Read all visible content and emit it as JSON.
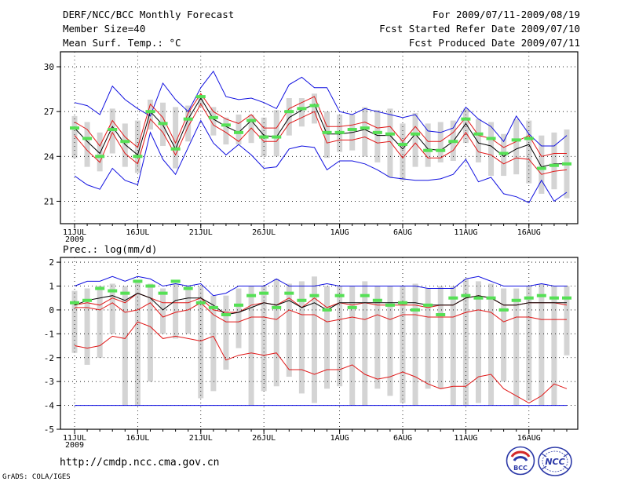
{
  "header": {
    "title": "DERF/NCC/BCC Monthly Forecast",
    "member_size": "Member Size=40",
    "variable": "Mean Surf. Temp.: °C",
    "period": "For 2009/07/11-2009/08/19",
    "started": "Fcst Started Refer Date 2009/07/10",
    "produced": "Fcst Produced Date 2009/07/11"
  },
  "footer": {
    "url": "http://cmdp.ncc.cma.gov.cn",
    "grads": "GrADS: COLA/IGES",
    "logo_bcc_text": "BCC",
    "logo_ncc_text": "NCC"
  },
  "colors": {
    "envelope": "#1010e0",
    "inner": "#e01818",
    "mean": "#000000",
    "green": "#55e055",
    "box": "#d4d4d4"
  },
  "chart_data": [
    {
      "type": "line",
      "id": "temperature",
      "title": "Mean Surf. Temp.: °C",
      "xlabel": "",
      "ylabel": "",
      "x_tick_labels": [
        "11JUL",
        "16JUL",
        "21JUL",
        "26JUL",
        "1AUG",
        "6AUG",
        "11AUG",
        "16AUG"
      ],
      "x_tick_days": [
        1,
        6,
        11,
        16,
        22,
        27,
        32,
        37
      ],
      "x_sublabel": "2009",
      "ylim": [
        19.5,
        31
      ],
      "yticks": [
        21,
        24,
        27,
        30
      ],
      "days": 40,
      "series": [
        {
          "name": "max",
          "color": "blue",
          "values": [
            27.6,
            27.4,
            26.8,
            28.7,
            27.8,
            27.2,
            26.7,
            28.9,
            27.8,
            27.0,
            28.6,
            29.7,
            28.0,
            27.8,
            27.9,
            27.6,
            27.2,
            28.8,
            29.3,
            28.6,
            28.6,
            27.0,
            26.8,
            27.2,
            27.0,
            26.8,
            26.6,
            26.8,
            25.7,
            25.6,
            25.9,
            27.3,
            26.5,
            26.0,
            25.0,
            26.7,
            25.5,
            24.7,
            24.7,
            25.4
          ]
        },
        {
          "name": "upper",
          "color": "red",
          "values": [
            26.3,
            25.8,
            24.7,
            26.4,
            25.3,
            24.6,
            27.5,
            26.6,
            24.9,
            26.9,
            28.2,
            27.0,
            26.5,
            26.2,
            26.8,
            25.9,
            25.9,
            27.2,
            27.6,
            28.0,
            26.0,
            26.0,
            26.1,
            26.3,
            25.9,
            26.0,
            25.0,
            26.0,
            25.0,
            25.0,
            25.6,
            26.6,
            25.4,
            25.2,
            24.6,
            25.0,
            25.4,
            24.0,
            24.2,
            24.2
          ]
        },
        {
          "name": "mean",
          "color": "black",
          "values": [
            25.9,
            25.0,
            24.2,
            26.0,
            24.8,
            24.1,
            27.0,
            26.1,
            24.5,
            26.5,
            27.9,
            26.5,
            26.0,
            25.6,
            26.4,
            25.4,
            25.3,
            26.6,
            27.1,
            27.5,
            25.5,
            25.5,
            25.6,
            25.8,
            25.4,
            25.4,
            24.5,
            25.5,
            24.5,
            24.4,
            25.0,
            26.2,
            24.9,
            24.7,
            24.0,
            24.5,
            24.8,
            23.3,
            23.5,
            23.5
          ]
        },
        {
          "name": "lower",
          "color": "red",
          "values": [
            25.4,
            24.4,
            23.6,
            25.6,
            24.2,
            23.5,
            26.5,
            25.6,
            24.1,
            26.0,
            27.5,
            26.1,
            25.6,
            25.0,
            25.9,
            25.0,
            25.0,
            26.2,
            26.6,
            27.0,
            24.9,
            25.1,
            25.1,
            25.3,
            24.9,
            25.0,
            23.9,
            24.9,
            23.9,
            23.9,
            24.4,
            25.6,
            24.3,
            24.1,
            23.5,
            23.9,
            23.8,
            22.8,
            23.0,
            23.1
          ]
        },
        {
          "name": "min",
          "color": "blue",
          "values": [
            22.7,
            22.1,
            21.8,
            23.2,
            22.4,
            22.1,
            25.6,
            23.8,
            22.8,
            24.6,
            26.4,
            24.9,
            24.1,
            24.8,
            24.1,
            23.2,
            23.3,
            24.5,
            24.7,
            24.6,
            23.1,
            23.7,
            23.7,
            23.5,
            23.1,
            22.6,
            22.5,
            22.4,
            22.4,
            22.5,
            22.8,
            23.8,
            22.3,
            22.6,
            21.5,
            21.3,
            20.9,
            22.4,
            21.0,
            21.6
          ]
        },
        {
          "name": "observed",
          "color": "green",
          "values": [
            25.9,
            25.2,
            24.0,
            25.8,
            25.0,
            24.0,
            27.0,
            26.2,
            24.5,
            26.5,
            28.0,
            26.6,
            26.1,
            25.6,
            26.4,
            25.3,
            25.3,
            27.0,
            27.2,
            27.4,
            25.6,
            25.6,
            25.8,
            25.9,
            25.6,
            25.5,
            24.8,
            25.5,
            24.4,
            24.4,
            25.0,
            26.5,
            25.5,
            25.2,
            24.2,
            25.1,
            25.2,
            23.2,
            23.4,
            23.5
          ]
        },
        {
          "name": "box_high",
          "color": "gray",
          "values": [
            26.7,
            26.3,
            25.6,
            27.2,
            26.2,
            26.4,
            27.8,
            27.6,
            27.3,
            27.4,
            28.0,
            27.3,
            26.6,
            26.8,
            26.8,
            26.6,
            27.1,
            27.9,
            27.9,
            28.2,
            27.0,
            26.8,
            26.8,
            27.3,
            27.1,
            27.2,
            26.2,
            26.9,
            26.2,
            26.3,
            26.4,
            27.2,
            26.5,
            26.3,
            25.5,
            26.5,
            26.4,
            25.4,
            25.6,
            25.8
          ]
        },
        {
          "name": "box_low",
          "color": "gray",
          "values": [
            23.9,
            23.3,
            23.0,
            24.2,
            23.3,
            22.9,
            25.8,
            24.7,
            23.2,
            25.0,
            27.3,
            25.4,
            24.8,
            24.8,
            24.9,
            24.0,
            24.0,
            25.4,
            26.0,
            26.2,
            23.9,
            24.3,
            24.4,
            24.0,
            23.6,
            22.6,
            22.4,
            23.3,
            23.3,
            23.6,
            23.7,
            24.9,
            23.6,
            22.7,
            22.7,
            22.8,
            22.2,
            21.5,
            21.8,
            21.2
          ]
        }
      ]
    },
    {
      "type": "line",
      "id": "precipitation",
      "title": "Prec.: log(mm/d)",
      "xlabel": "",
      "ylabel": "",
      "x_tick_labels": [
        "11JUL",
        "16JUL",
        "21JUL",
        "26JUL",
        "1AUG",
        "6AUG",
        "11AUG",
        "16AUG"
      ],
      "x_tick_days": [
        1,
        6,
        11,
        16,
        22,
        27,
        32,
        37
      ],
      "x_sublabel": "2009",
      "ylim": [
        -5,
        2.2
      ],
      "yticks": [
        -5,
        -4,
        -3,
        -2,
        -1,
        0,
        1,
        2
      ],
      "days": 40,
      "series": [
        {
          "name": "max",
          "color": "blue",
          "values": [
            1.0,
            1.2,
            1.2,
            1.4,
            1.2,
            1.4,
            1.3,
            1.0,
            1.1,
            1.0,
            1.1,
            0.6,
            0.7,
            1.0,
            1.0,
            1.0,
            1.3,
            1.0,
            1.0,
            1.0,
            1.1,
            1.0,
            1.0,
            1.0,
            1.0,
            1.0,
            1.0,
            1.0,
            0.9,
            0.9,
            0.9,
            1.3,
            1.4,
            1.2,
            1.0,
            1.0,
            1.0,
            1.1,
            1.0,
            1.0
          ]
        },
        {
          "name": "upper",
          "color": "red",
          "values": [
            0.2,
            0.3,
            0.2,
            0.5,
            0.3,
            0.7,
            0.5,
            0.3,
            0.3,
            0.3,
            0.5,
            0.0,
            -0.1,
            -0.1,
            0.2,
            0.3,
            0.2,
            0.5,
            0.1,
            0.5,
            0.1,
            0.3,
            0.2,
            0.3,
            0.2,
            0.2,
            0.2,
            0.2,
            0.1,
            0.2,
            0.2,
            0.5,
            0.6,
            0.5,
            0.2,
            0.2,
            0.3,
            0.3,
            0.3,
            0.2
          ]
        },
        {
          "name": "mean",
          "color": "black",
          "values": [
            0.2,
            0.4,
            0.5,
            0.6,
            0.4,
            0.7,
            0.5,
            0.0,
            0.4,
            0.5,
            0.5,
            0.2,
            -0.2,
            -0.1,
            0.1,
            0.3,
            0.2,
            0.4,
            0.1,
            0.3,
            0.0,
            0.3,
            0.3,
            0.3,
            0.3,
            0.3,
            0.3,
            0.3,
            0.2,
            0.2,
            0.2,
            0.5,
            0.6,
            0.5,
            0.2,
            0.2,
            0.3,
            0.3,
            0.3,
            0.3
          ]
        },
        {
          "name": "lower",
          "color": "red",
          "values": [
            0.1,
            0.1,
            0.0,
            0.3,
            -0.1,
            0.0,
            0.3,
            -0.3,
            -0.1,
            0.0,
            0.3,
            -0.2,
            -0.5,
            -0.5,
            -0.3,
            -0.3,
            -0.4,
            0.0,
            -0.2,
            -0.2,
            -0.5,
            -0.4,
            -0.3,
            -0.4,
            -0.2,
            -0.4,
            -0.2,
            -0.2,
            -0.3,
            -0.3,
            -0.3,
            -0.1,
            0.0,
            -0.1,
            -0.5,
            -0.3,
            -0.3,
            -0.4,
            -0.4,
            -0.4
          ]
        },
        {
          "name": "min_red",
          "color": "red",
          "values": [
            -1.5,
            -1.6,
            -1.5,
            -1.1,
            -1.2,
            -0.5,
            -0.7,
            -1.2,
            -1.1,
            -1.2,
            -1.3,
            -1.1,
            -2.1,
            -1.9,
            -1.8,
            -1.9,
            -1.8,
            -2.5,
            -2.5,
            -2.7,
            -2.5,
            -2.5,
            -2.3,
            -2.7,
            -2.9,
            -2.8,
            -2.6,
            -2.8,
            -3.1,
            -3.3,
            -3.2,
            -3.2,
            -2.8,
            -2.7,
            -3.3,
            -3.6,
            -3.9,
            -3.6,
            -3.1,
            -3.3
          ]
        },
        {
          "name": "min",
          "color": "blue",
          "values": [
            -4.0,
            -4.0,
            -4.0,
            -4.0,
            -4.0,
            -4.0,
            -4.0,
            -4.0,
            -4.0,
            -4.0,
            -4.0,
            -4.0,
            -4.0,
            -4.0,
            -4.0,
            -4.0,
            -4.0,
            -4.0,
            -4.0,
            -4.0,
            -4.0,
            -4.0,
            -4.0,
            -4.0,
            -4.0,
            -4.0,
            -4.0,
            -4.0,
            -4.0,
            -4.0,
            -4.0,
            -4.0,
            -4.0,
            -4.0,
            -4.0,
            -4.0,
            -4.0,
            -4.0,
            -4.0,
            -4.0
          ]
        },
        {
          "name": "observed",
          "color": "green",
          "values": [
            0.3,
            0.4,
            0.9,
            0.8,
            0.7,
            1.2,
            1.0,
            0.7,
            1.2,
            0.9,
            0.3,
            0.1,
            -0.2,
            0.2,
            0.6,
            0.7,
            0.1,
            0.7,
            0.4,
            0.6,
            0.0,
            0.6,
            0.1,
            0.6,
            0.4,
            0.2,
            0.3,
            0.0,
            0.2,
            -0.2,
            0.5,
            0.6,
            0.5,
            0.5,
            0.0,
            0.4,
            0.5,
            0.6,
            0.5,
            0.5
          ]
        },
        {
          "name": "box_high",
          "color": "gray",
          "values": [
            0.8,
            0.9,
            1.0,
            1.1,
            1.0,
            1.2,
            1.1,
            0.9,
            1.1,
            1.0,
            1.0,
            0.6,
            0.6,
            0.9,
            1.0,
            1.0,
            1.3,
            1.1,
            1.2,
            1.4,
            1.0,
            1.0,
            1.0,
            1.2,
            1.0,
            1.0,
            1.0,
            1.1,
            0.9,
            1.0,
            1.0,
            1.3,
            1.2,
            1.1,
            0.9,
            0.9,
            1.0,
            1.1,
            1.0,
            1.0
          ]
        },
        {
          "name": "box_low",
          "color": "gray",
          "values": [
            -1.8,
            -2.3,
            -2.0,
            -1.0,
            -4.0,
            -4.0,
            -3.0,
            -1.0,
            -1.2,
            -1.0,
            -3.7,
            -3.4,
            -2.5,
            -1.6,
            -4.0,
            -3.4,
            -3.2,
            -2.8,
            -3.5,
            -3.9,
            -3.3,
            -3.2,
            -4.0,
            -4.0,
            -3.3,
            -3.6,
            -3.9,
            -4.0,
            -3.3,
            -3.3,
            -4.0,
            -4.0,
            -3.9,
            -4.0,
            -3.0,
            -4.0,
            -3.8,
            -4.0,
            -4.0,
            -1.9
          ]
        }
      ]
    }
  ]
}
